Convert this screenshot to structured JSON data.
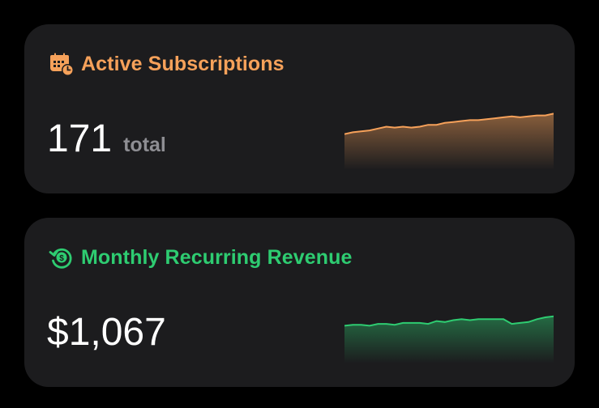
{
  "cards": [
    {
      "id": "active-subscriptions",
      "title": "Active Subscriptions",
      "icon": "calendar-clock-icon",
      "accent_color": "#f6a15a",
      "value": "171",
      "unit": "total",
      "trend": [
        28,
        30,
        31,
        32,
        34,
        36,
        35,
        36,
        35,
        36,
        38,
        38,
        40,
        41,
        42,
        43,
        43,
        44,
        45,
        46,
        47,
        46,
        47,
        48,
        48,
        50
      ]
    },
    {
      "id": "monthly-recurring-revenue",
      "title": "Monthly Recurring Revenue",
      "icon": "dollar-refresh-icon",
      "accent_color": "#2ecc71",
      "value": "$1,067",
      "unit": "",
      "trend": [
        30,
        31,
        31,
        30,
        32,
        32,
        31,
        33,
        33,
        33,
        32,
        35,
        34,
        36,
        37,
        36,
        37,
        37,
        37,
        37,
        32,
        33,
        34,
        37,
        39,
        40
      ]
    }
  ]
}
